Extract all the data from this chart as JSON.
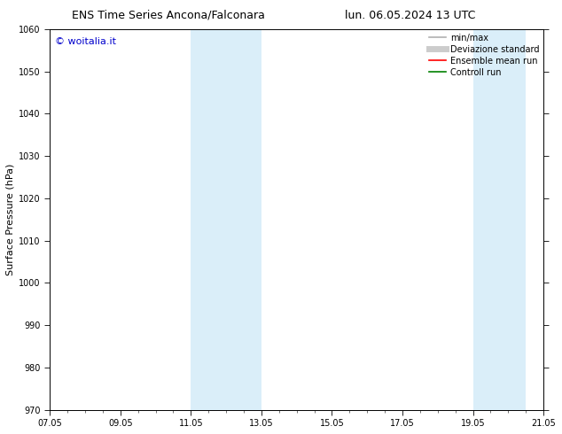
{
  "title_left": "ENS Time Series Ancona/Falconara",
  "title_right": "lun. 06.05.2024 13 UTC",
  "ylabel": "Surface Pressure (hPa)",
  "ylim": [
    970,
    1060
  ],
  "yticks": [
    970,
    980,
    990,
    1000,
    1010,
    1020,
    1030,
    1040,
    1050,
    1060
  ],
  "xtick_labels": [
    "07.05",
    "09.05",
    "11.05",
    "13.05",
    "15.05",
    "17.05",
    "19.05",
    "21.05"
  ],
  "xtick_positions": [
    0,
    2,
    4,
    6,
    8,
    10,
    12,
    14
  ],
  "xlim": [
    0,
    14
  ],
  "shaded_bands": [
    {
      "x_start": 4,
      "x_end": 6,
      "color": "#daeef9"
    },
    {
      "x_start": 12,
      "x_end": 13.5,
      "color": "#daeef9"
    }
  ],
  "copyright_text": "© woitalia.it",
  "copyright_color": "#0000cc",
  "legend_entries": [
    {
      "label": "min/max",
      "color": "#b0b0b0",
      "lw": 1.2
    },
    {
      "label": "Deviazione standard",
      "color": "#cccccc",
      "lw": 5
    },
    {
      "label": "Ensemble mean run",
      "color": "#ff0000",
      "lw": 1.2
    },
    {
      "label": "Controll run",
      "color": "#008000",
      "lw": 1.2
    }
  ],
  "bg_color": "#ffffff",
  "plot_bg_color": "#ffffff",
  "title_fontsize": 9,
  "ylabel_fontsize": 8,
  "tick_fontsize": 7,
  "copyright_fontsize": 8,
  "legend_fontsize": 7
}
